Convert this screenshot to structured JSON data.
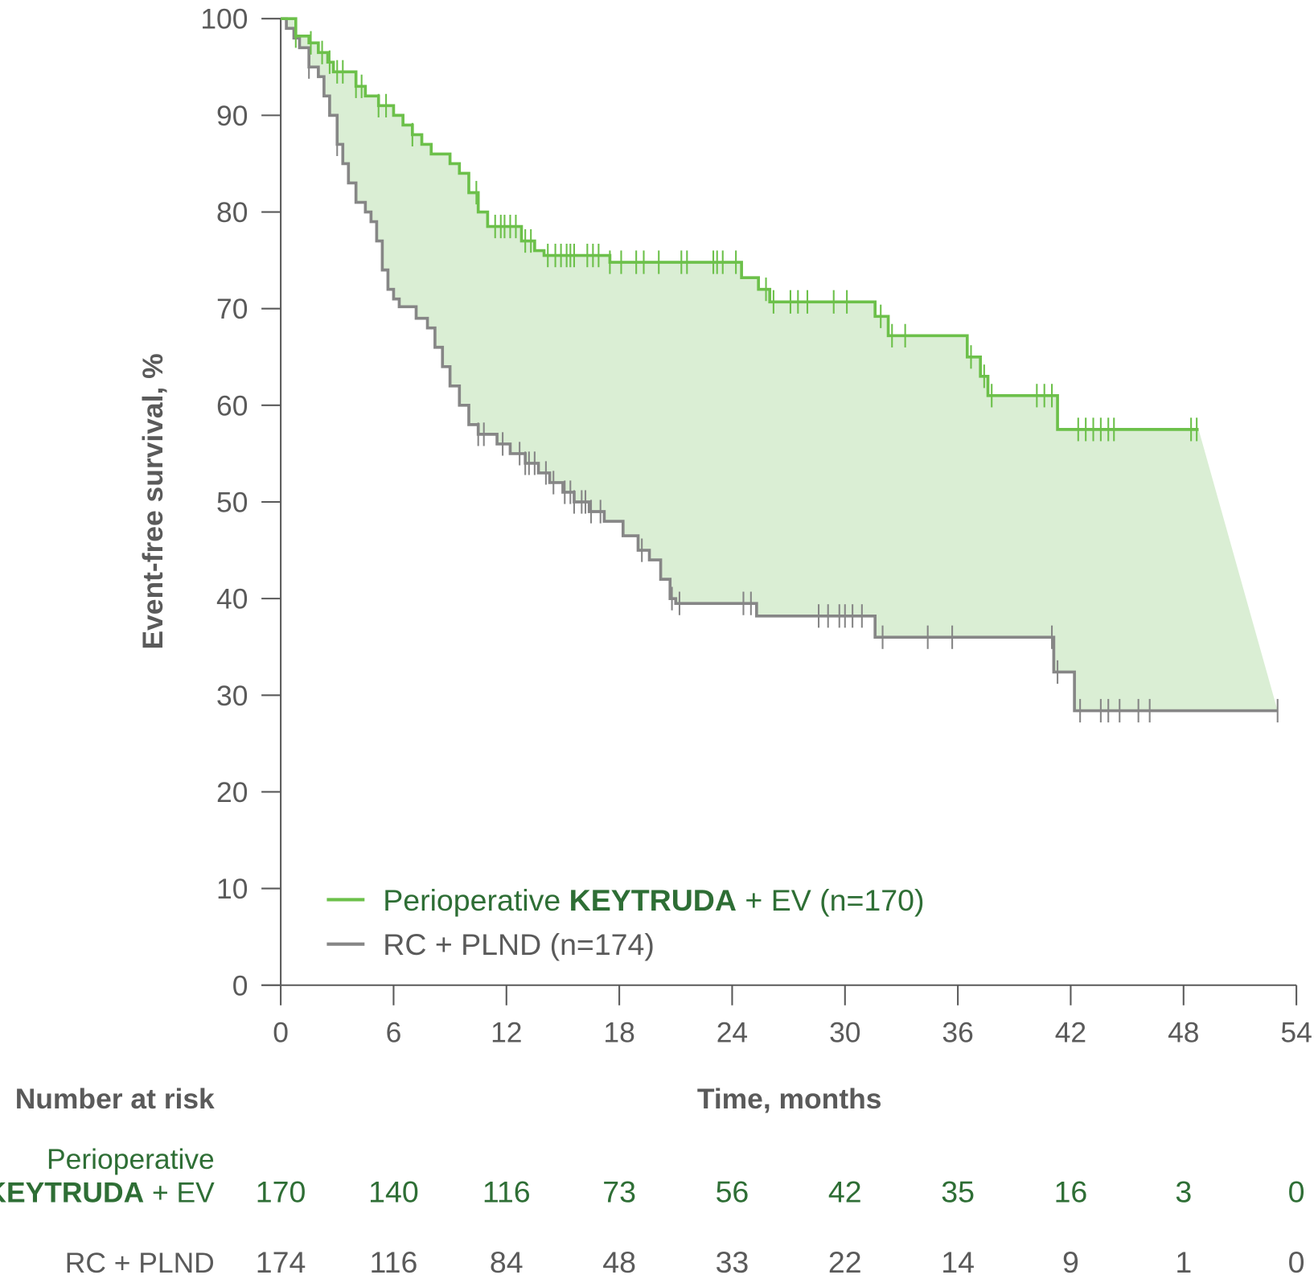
{
  "chart_data": {
    "type": "line",
    "subtype": "kaplan-meier step",
    "xlabel": "Time, months",
    "ylabel": "Event-free survival, %",
    "xlim": [
      0,
      54
    ],
    "ylim": [
      0,
      100
    ],
    "xticks": [
      0,
      6,
      12,
      18,
      24,
      30,
      36,
      42,
      48,
      54
    ],
    "yticks": [
      0,
      10,
      20,
      30,
      40,
      50,
      60,
      70,
      80,
      90,
      100
    ],
    "grid": false,
    "legend_position": "bottom-left",
    "shaded_between_curves": true,
    "shade_color": "#daeed4",
    "series": [
      {
        "name_regular": "Perioperative ",
        "name_bold": "KEYTRUDA",
        "name_suffix": " + EV (n=170)",
        "color": "#6cc04a",
        "steps": [
          [
            0,
            100
          ],
          [
            0.8,
            98.2
          ],
          [
            1.5,
            97.5
          ],
          [
            2,
            96.5
          ],
          [
            2.5,
            95.5
          ],
          [
            2.8,
            94.5
          ],
          [
            4,
            93
          ],
          [
            4.5,
            92
          ],
          [
            5.2,
            91
          ],
          [
            6,
            90
          ],
          [
            6.5,
            89
          ],
          [
            7,
            88
          ],
          [
            7.5,
            87
          ],
          [
            8,
            86
          ],
          [
            9,
            85
          ],
          [
            9.5,
            84
          ],
          [
            10,
            82
          ],
          [
            10.5,
            80
          ],
          [
            11,
            78.5
          ],
          [
            12.8,
            77
          ],
          [
            13.5,
            76
          ],
          [
            14,
            75.5
          ],
          [
            17.5,
            74.8
          ],
          [
            24.5,
            73.2
          ],
          [
            25.4,
            72
          ],
          [
            26,
            70.7
          ],
          [
            31.6,
            69.2
          ],
          [
            32.3,
            67.2
          ],
          [
            36.5,
            65
          ],
          [
            37.2,
            63
          ],
          [
            37.6,
            61
          ],
          [
            41.3,
            57.5
          ],
          [
            48.8,
            57.5
          ]
        ],
        "censored": [
          0.8,
          1.6,
          2.2,
          2.6,
          3.0,
          3.3,
          4.0,
          4.3,
          5.2,
          5.6,
          7.0,
          10.4,
          11.4,
          11.7,
          11.9,
          12.2,
          12.5,
          13.0,
          13.3,
          14.2,
          14.6,
          14.9,
          15.2,
          15.4,
          15.6,
          16.3,
          16.6,
          16.9,
          17.5,
          18.1,
          18.9,
          19.3,
          20.1,
          21.3,
          21.6,
          23.0,
          23.2,
          23.5,
          24.2,
          25.8,
          26.2,
          27.1,
          27.5,
          28.0,
          29.4,
          30.1,
          31.9,
          32.5,
          33.2,
          36.7,
          37.4,
          37.8,
          40.2,
          40.6,
          41.0,
          42.4,
          42.8,
          43.2,
          43.6,
          44.0,
          44.3,
          48.4,
          48.7
        ],
        "at_risk": [
          170,
          140,
          116,
          73,
          56,
          42,
          35,
          16,
          3,
          0
        ]
      },
      {
        "name": "RC + PLND (n=174)",
        "color": "#868686",
        "steps": [
          [
            0,
            100
          ],
          [
            0.3,
            99
          ],
          [
            0.7,
            98
          ],
          [
            1,
            97
          ],
          [
            1.5,
            95
          ],
          [
            2,
            94
          ],
          [
            2.3,
            92
          ],
          [
            2.6,
            90
          ],
          [
            3,
            87
          ],
          [
            3.3,
            85
          ],
          [
            3.6,
            83
          ],
          [
            4,
            81
          ],
          [
            4.5,
            80
          ],
          [
            4.8,
            79
          ],
          [
            5.1,
            77
          ],
          [
            5.4,
            74
          ],
          [
            5.7,
            72
          ],
          [
            6,
            71
          ],
          [
            6.3,
            70.2
          ],
          [
            7.2,
            69
          ],
          [
            7.8,
            68
          ],
          [
            8.2,
            66
          ],
          [
            8.6,
            64
          ],
          [
            9,
            62
          ],
          [
            9.5,
            60
          ],
          [
            10,
            58
          ],
          [
            10.5,
            57
          ],
          [
            11.5,
            56
          ],
          [
            12.2,
            55
          ],
          [
            13,
            54
          ],
          [
            13.7,
            53
          ],
          [
            14.3,
            52
          ],
          [
            15,
            51
          ],
          [
            15.6,
            50
          ],
          [
            16.4,
            49
          ],
          [
            17.2,
            48
          ],
          [
            18.2,
            46.5
          ],
          [
            19,
            45
          ],
          [
            19.6,
            44
          ],
          [
            20.2,
            42
          ],
          [
            20.7,
            40
          ],
          [
            21,
            39.5
          ],
          [
            25.3,
            38.2
          ],
          [
            31.6,
            36
          ],
          [
            41.1,
            32.4
          ],
          [
            42.2,
            28.4
          ],
          [
            53,
            28.4
          ]
        ],
        "censored": [
          1.5,
          3.0,
          10.5,
          10.8,
          11.8,
          12.7,
          13.0,
          13.2,
          13.5,
          14.1,
          14.5,
          15.1,
          15.4,
          15.6,
          16.0,
          16.2,
          16.5,
          17.0,
          19.2,
          20.8,
          21.2,
          24.6,
          25.0,
          28.6,
          29.1,
          29.7,
          30.0,
          30.4,
          30.9,
          32.0,
          34.4,
          35.7,
          41.0,
          41.3,
          42.5,
          43.6,
          44.0,
          44.6,
          45.6,
          46.2,
          53.0
        ],
        "at_risk": [
          174,
          116,
          84,
          48,
          33,
          22,
          14,
          9,
          1,
          0
        ]
      }
    ],
    "risk_table": {
      "title": "Number at risk",
      "row1_label_line1": "Perioperative",
      "row1_label_bold": "KEYTRUDA",
      "row1_label_suffix": " + EV",
      "row2_label": "RC + PLND"
    }
  }
}
